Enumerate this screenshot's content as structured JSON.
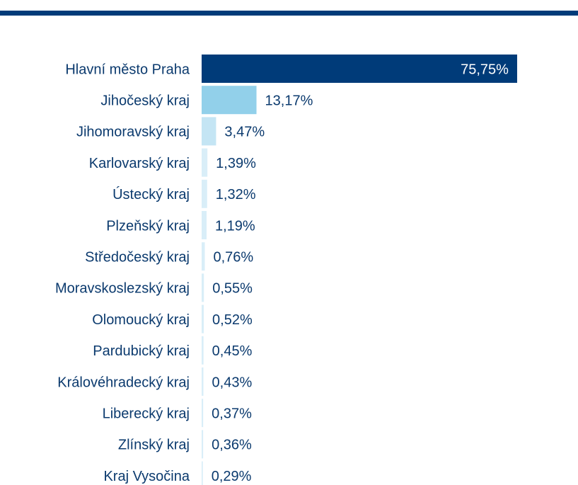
{
  "chart_data": {
    "type": "hbar",
    "categories": [
      "Hlavní město Praha",
      "Jihočeský kraj",
      "Jihomoravský kraj",
      "Karlovarský kraj",
      "Ústecký kraj",
      "Plzeňský kraj",
      "Středočeský kraj",
      "Moravskoslezský kraj",
      "Olomoucký kraj",
      "Pardubický kraj",
      "Královéhradecký kraj",
      "Liberecký kraj",
      "Zlínský kraj",
      "Kraj Vysočina"
    ],
    "values": [
      75.75,
      13.17,
      3.47,
      1.39,
      1.32,
      1.19,
      0.76,
      0.55,
      0.52,
      0.45,
      0.43,
      0.37,
      0.36,
      0.29
    ],
    "value_labels": [
      "75,75%",
      "13,17%",
      "3,47%",
      "1,39%",
      "1,32%",
      "1,19%",
      "0,76%",
      "0,55%",
      "0,52%",
      "0,45%",
      "0,43%",
      "0,37%",
      "0,36%",
      "0,29%"
    ],
    "colors": [
      "#003b79",
      "#92d0ea",
      "#c4e5f4",
      "#d9eef8",
      "#d9eef8",
      "#d9eef8",
      "#d9eef8",
      "#d9eef8",
      "#d9eef8",
      "#d9eef8",
      "#d9eef8",
      "#d9eef8",
      "#d9eef8",
      "#d9eef8"
    ],
    "xlim": [
      0,
      80
    ]
  }
}
